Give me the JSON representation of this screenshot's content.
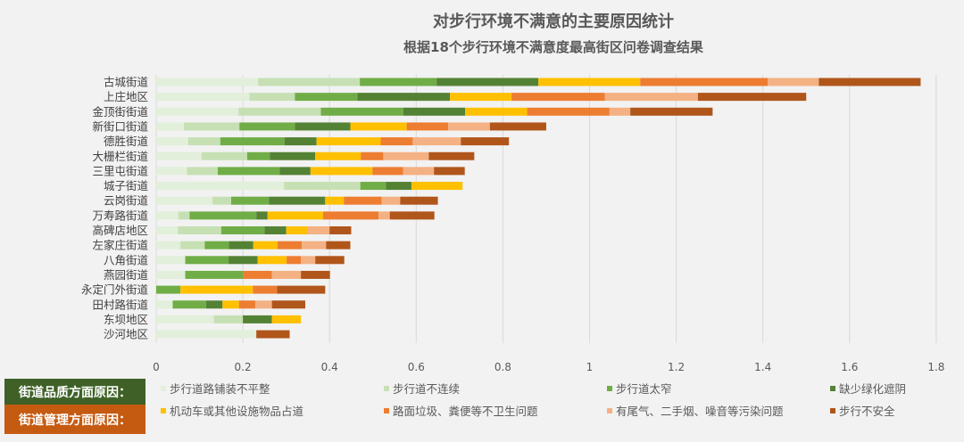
{
  "chart_data": {
    "type": "bar",
    "orientation": "horizontal",
    "stacked": true,
    "title": "对步行环境不满意的主要原因统计",
    "subtitle": "根据18个步行环境不满意度最高街区问卷调查结果",
    "xlabel": "",
    "ylabel": "",
    "xlim": [
      0,
      1.8
    ],
    "xticks": [
      "0",
      "0.2",
      "0.4",
      "0.6",
      "0.8",
      "1",
      "1.2",
      "1.4",
      "1.6",
      "1.8"
    ],
    "grid": true,
    "categories": [
      "古城街道",
      "上庄地区",
      "金顶街街道",
      "新街口街道",
      "德胜街道",
      "大栅栏街道",
      "三里屯街道",
      "城子街道",
      "云岗街道",
      "万寿路街道",
      "高碑店地区",
      "左家庄街道",
      "八角街道",
      "燕园街道",
      "永定门外街道",
      "田村路街道",
      "东坝地区",
      "沙河地区"
    ],
    "series": [
      {
        "name": "步行道路铺装不平整",
        "color": "#e2efda",
        "values": [
          0.235,
          0.215,
          0.19,
          0.064,
          0.074,
          0.105,
          0.071,
          0.295,
          0.13,
          0.051,
          0.05,
          0.056,
          0.067,
          0.067,
          0,
          0.038,
          0.133,
          0.231
        ]
      },
      {
        "name": "步行道不连续",
        "color": "#c6e0b4",
        "values": [
          0.235,
          0.105,
          0.19,
          0.128,
          0.074,
          0.105,
          0.071,
          0.176,
          0.043,
          0.026,
          0.1,
          0.056,
          0,
          0,
          0,
          0,
          0.067,
          0
        ]
      },
      {
        "name": "步行道太窄",
        "color": "#70ad47",
        "values": [
          0.177,
          0.144,
          0.19,
          0.128,
          0.148,
          0.052,
          0.143,
          0.059,
          0.087,
          0.154,
          0.1,
          0.056,
          0.1,
          0.133,
          0.056,
          0.077,
          0,
          0
        ]
      },
      {
        "name": "缺少绿化遮阴",
        "color": "#548235",
        "values": [
          0.235,
          0.214,
          0.143,
          0.128,
          0.074,
          0.105,
          0.071,
          0.059,
          0.13,
          0.026,
          0.05,
          0.056,
          0.067,
          0,
          0,
          0.038,
          0.067,
          0
        ]
      },
      {
        "name": "机动车或其他设施物品占道",
        "color": "#ffc000",
        "values": [
          0.235,
          0.142,
          0.143,
          0.13,
          0.148,
          0.105,
          0.143,
          0.118,
          0.043,
          0.128,
          0.05,
          0.056,
          0.067,
          0,
          0.167,
          0.038,
          0.067,
          0
        ]
      },
      {
        "name": "路面垃圾、粪便等不卫生问题",
        "color": "#ed7d31",
        "values": [
          0.294,
          0.215,
          0.19,
          0.096,
          0.074,
          0.052,
          0.071,
          0,
          0.087,
          0.128,
          0,
          0.056,
          0.033,
          0.067,
          0.056,
          0.038,
          0,
          0
        ]
      },
      {
        "name": "有尾气、二手烟、噪音等污染问题",
        "color": "#f4b183",
        "values": [
          0.118,
          0.215,
          0.048,
          0.096,
          0.111,
          0.105,
          0.071,
          0,
          0.043,
          0.026,
          0.05,
          0.056,
          0.033,
          0.067,
          0,
          0.038,
          0,
          0
        ]
      },
      {
        "name": "步行不安全",
        "color": "#b0561b",
        "values": [
          0.235,
          0.25,
          0.19,
          0.13,
          0.111,
          0.105,
          0.071,
          0,
          0.087,
          0.103,
          0.05,
          0.056,
          0.067,
          0.067,
          0.111,
          0.077,
          0,
          0.077
        ]
      }
    ],
    "legend_placement": "bottom",
    "legend_groups": [
      {
        "label": "街道品质方面原因：",
        "color": "#3f6127"
      },
      {
        "label": "街道管理方面原因：",
        "color": "#c55a11"
      }
    ]
  }
}
